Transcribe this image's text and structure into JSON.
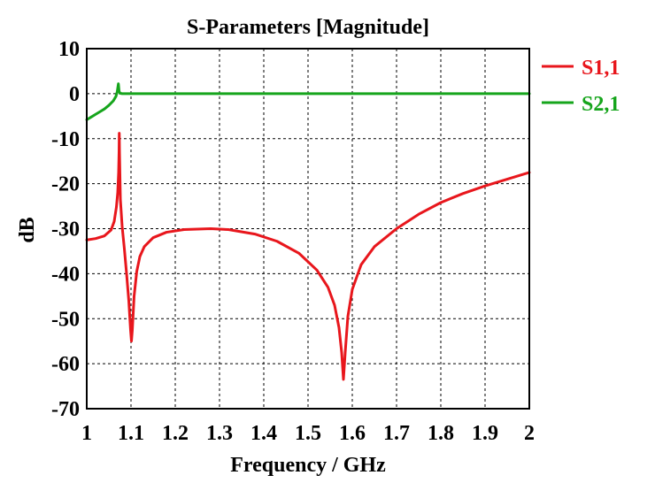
{
  "chart_data": {
    "type": "line",
    "title": "S-Parameters [Magnitude]",
    "xlabel": "Frequency / GHz",
    "ylabel": "dB",
    "xlim": [
      1,
      2
    ],
    "ylim": [
      -70,
      10
    ],
    "x_ticks": [
      "1",
      "1.1",
      "1.2",
      "1.3",
      "1.4",
      "1.5",
      "1.6",
      "1.7",
      "1.8",
      "1.9",
      "2"
    ],
    "y_ticks": [
      "10",
      "0",
      "-10",
      "-20",
      "-30",
      "-40",
      "-50",
      "-60",
      "-70"
    ],
    "grid": true,
    "legend_position": "top-right, outside plot",
    "series": [
      {
        "name": "S1,1",
        "color": "#e8161c",
        "points": [
          [
            1.0,
            -32.5
          ],
          [
            1.02,
            -32.2
          ],
          [
            1.04,
            -31.6
          ],
          [
            1.055,
            -30.3
          ],
          [
            1.062,
            -28.4
          ],
          [
            1.067,
            -25.2
          ],
          [
            1.07,
            -22.0
          ],
          [
            1.072,
            -17.5
          ],
          [
            1.073,
            -13.0
          ],
          [
            1.0735,
            -8.8
          ],
          [
            1.074,
            -13.0
          ],
          [
            1.076,
            -23.5
          ],
          [
            1.08,
            -29.5
          ],
          [
            1.085,
            -34.5
          ],
          [
            1.09,
            -40.0
          ],
          [
            1.095,
            -46.0
          ],
          [
            1.099,
            -52.5
          ],
          [
            1.101,
            -55.0
          ],
          [
            1.103,
            -52.5
          ],
          [
            1.107,
            -45.0
          ],
          [
            1.113,
            -39.5
          ],
          [
            1.12,
            -36.2
          ],
          [
            1.13,
            -34.0
          ],
          [
            1.15,
            -32.0
          ],
          [
            1.18,
            -30.8
          ],
          [
            1.22,
            -30.2
          ],
          [
            1.28,
            -30.0
          ],
          [
            1.32,
            -30.2
          ],
          [
            1.38,
            -31.2
          ],
          [
            1.43,
            -32.8
          ],
          [
            1.48,
            -35.5
          ],
          [
            1.52,
            -39.2
          ],
          [
            1.545,
            -43.0
          ],
          [
            1.56,
            -47.0
          ],
          [
            1.57,
            -52.0
          ],
          [
            1.576,
            -57.5
          ],
          [
            1.58,
            -63.5
          ],
          [
            1.584,
            -57.5
          ],
          [
            1.59,
            -49.5
          ],
          [
            1.6,
            -43.5
          ],
          [
            1.62,
            -38.0
          ],
          [
            1.65,
            -34.0
          ],
          [
            1.7,
            -30.0
          ],
          [
            1.75,
            -26.8
          ],
          [
            1.8,
            -24.2
          ],
          [
            1.85,
            -22.2
          ],
          [
            1.9,
            -20.5
          ],
          [
            1.95,
            -19.0
          ],
          [
            2.0,
            -17.5
          ]
        ]
      },
      {
        "name": "S2,1",
        "color": "#16a51c",
        "points": [
          [
            1.0,
            -5.8
          ],
          [
            1.01,
            -5.2
          ],
          [
            1.02,
            -4.6
          ],
          [
            1.03,
            -4.0
          ],
          [
            1.04,
            -3.4
          ],
          [
            1.05,
            -2.6
          ],
          [
            1.06,
            -1.6
          ],
          [
            1.066,
            -0.6
          ],
          [
            1.069,
            0.5
          ],
          [
            1.0715,
            2.2
          ],
          [
            1.073,
            0.6
          ],
          [
            1.075,
            0.1
          ],
          [
            1.08,
            0.0
          ],
          [
            1.2,
            0.0
          ],
          [
            1.5,
            0.0
          ],
          [
            2.0,
            0.0
          ]
        ]
      }
    ]
  }
}
